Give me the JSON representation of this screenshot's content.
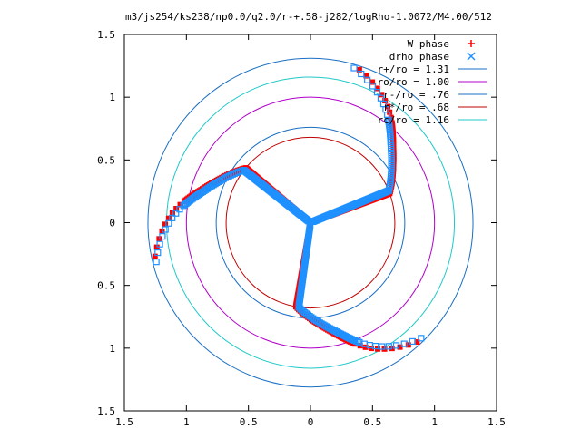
{
  "chart_data": {
    "type": "scatter",
    "title": "m3/js254/ks238/np0.0/q2.0/r-+.58-j282/logRho-1.0072/M4.00/512",
    "xlim": [
      -1.5,
      1.5
    ],
    "ylim": [
      -1.5,
      1.5
    ],
    "xticks": [
      -1.5,
      -1,
      -0.5,
      0,
      0.5,
      1,
      1.5
    ],
    "yticks": [
      -1.5,
      -1,
      -0.5,
      0,
      0.5,
      1,
      1.5
    ],
    "xtick_labels": [
      "1.5",
      "1",
      "0.5",
      "0",
      "0.5",
      "1",
      "1.5"
    ],
    "ytick_labels": [
      "1.5",
      "1",
      "0.5",
      "0",
      "0.5",
      "1",
      "1.5"
    ],
    "grid": false,
    "legend_position": "top-right",
    "series": [
      {
        "name": "W phase",
        "marker": "plus-star",
        "color": "#ff0000",
        "arms": [
          {
            "angle_deg": 20,
            "twist": 1
          },
          {
            "angle_deg": 140,
            "twist": 1
          },
          {
            "angle_deg": 260,
            "twist": 1
          }
        ]
      },
      {
        "name": "drho phase",
        "marker": "cross-square-circle",
        "color": "#1e90ff",
        "arms": [
          {
            "angle_deg": 20,
            "twist": 1
          },
          {
            "angle_deg": 140,
            "twist": 1
          },
          {
            "angle_deg": 260,
            "twist": 1
          }
        ]
      }
    ],
    "circles": [
      {
        "name": "r+/ro = 1.31",
        "r": 1.31,
        "color": "#1a6fc4"
      },
      {
        "name": "ro/ro = 1.00",
        "r": 1.0,
        "color": "#b000c8"
      },
      {
        "name": "r-/ro = .76",
        "r": 0.76,
        "color": "#1a6fc4"
      },
      {
        "name": "r*/ro = .68",
        "r": 0.68,
        "color": "#c00000"
      },
      {
        "name": "rc/ro = 1.16",
        "r": 1.16,
        "color": "#20c8c8"
      }
    ]
  }
}
